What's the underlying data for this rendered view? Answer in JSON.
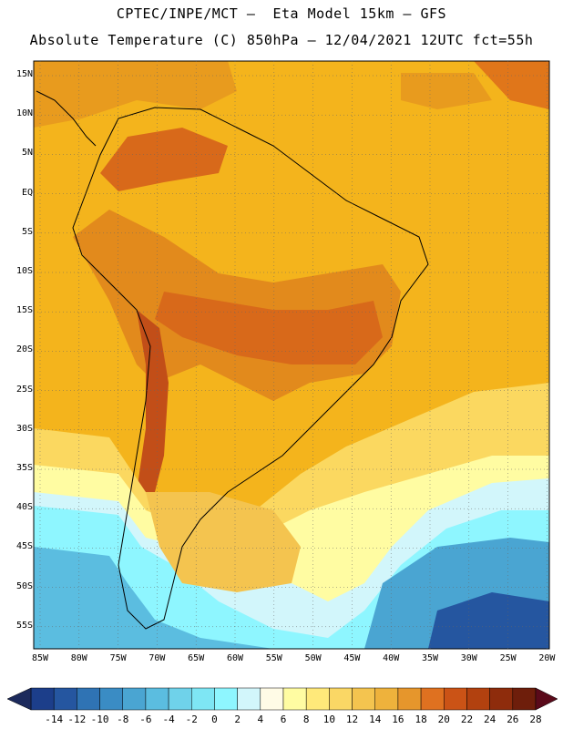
{
  "header": {
    "line1": "CPTEC/INPE/MCT –  Eta Model 15km – GFS",
    "line2": "Absolute Temperature (C) 850hPa – 12/04/2021 12UTC fct=55h"
  },
  "map": {
    "lat_labels": [
      "15N",
      "10N",
      "5N",
      "EQ",
      "5S",
      "10S",
      "15S",
      "20S",
      "25S",
      "30S",
      "35S",
      "40S",
      "45S",
      "50S",
      "55S"
    ],
    "lon_labels": [
      "85W",
      "80W",
      "75W",
      "70W",
      "65W",
      "60W",
      "55W",
      "50W",
      "45W",
      "40W",
      "35W",
      "30W",
      "25W",
      "20W"
    ]
  },
  "colorbar": {
    "labels": [
      "-14",
      "-12",
      "-10",
      "-8",
      "-6",
      "-4",
      "-2",
      "0",
      "2",
      "4",
      "6",
      "8",
      "10",
      "12",
      "14",
      "16",
      "18",
      "20",
      "22",
      "24",
      "26",
      "28"
    ],
    "colors": [
      "#1c3e8a",
      "#2556a0",
      "#2f73b4",
      "#3a8cc4",
      "#4aa5d2",
      "#5bbde0",
      "#6fd2ea",
      "#7ee6f4",
      "#8ef6ff",
      "#d2f6fb",
      "#fffbe6",
      "#fffca2",
      "#ffe97a",
      "#fad765",
      "#f4c44f",
      "#eeb23c",
      "#e6962c",
      "#df7120",
      "#cb5316",
      "#b2410f",
      "#8e2c0c",
      "#6e1e0b"
    ],
    "low_arrow_color": "#1c2a5c",
    "high_arrow_color": "#5a0a1a"
  }
}
